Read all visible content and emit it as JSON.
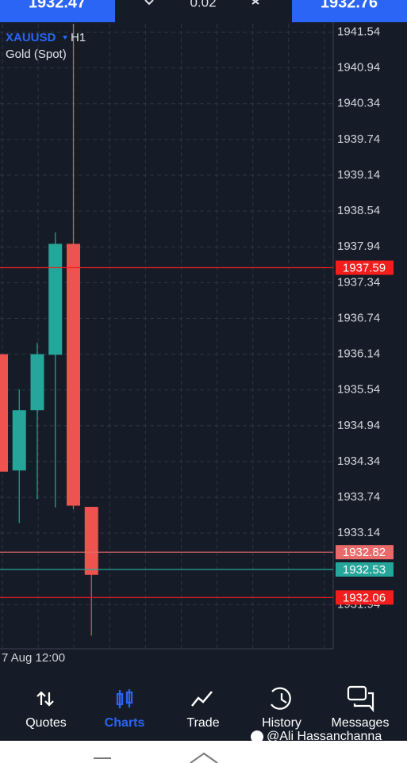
{
  "top_bar": {
    "bid": "1932.47",
    "spread": "0.02",
    "ask": "1932.76"
  },
  "chart_data": {
    "type": "candlestick",
    "symbol": "XAUUSD",
    "timeframe": "H1",
    "name": "Gold (Spot)",
    "x_label": "7 Aug 12:00",
    "colors": {
      "up": "#26a69a",
      "down": "#ef5350"
    },
    "open": [
      1936.14,
      1934.19,
      1935.2,
      1936.13,
      1937.99,
      1933.58
    ],
    "high": [
      1936.14,
      1935.55,
      1936.33,
      1938.18,
      1941.68,
      1933.58
    ],
    "low": [
      1934.17,
      1933.31,
      1933.71,
      1933.57,
      1933.54,
      1931.42
    ],
    "close": [
      1934.17,
      1935.2,
      1936.14,
      1937.99,
      1933.6,
      1932.44
    ],
    "ylim": [
      1931.2,
      1941.68
    ],
    "yticks": [
      1941.54,
      1940.94,
      1940.34,
      1939.74,
      1939.14,
      1938.54,
      1937.94,
      1937.34,
      1936.74,
      1936.14,
      1935.54,
      1934.94,
      1934.34,
      1933.74,
      1933.14,
      1931.94
    ],
    "grid": true,
    "price_lines": [
      {
        "value": 1937.59,
        "color": "#f21d1d"
      },
      {
        "value": 1932.82,
        "color": "#e86a6a"
      },
      {
        "value": 1932.53,
        "color": "#26a69a"
      },
      {
        "value": 1932.06,
        "color": "#f21d1d"
      }
    ]
  },
  "nav": {
    "items": [
      "Quotes",
      "Charts",
      "Trade",
      "History",
      "Messages"
    ],
    "active": 1
  },
  "watermark": "@Ali Hassanchanna"
}
